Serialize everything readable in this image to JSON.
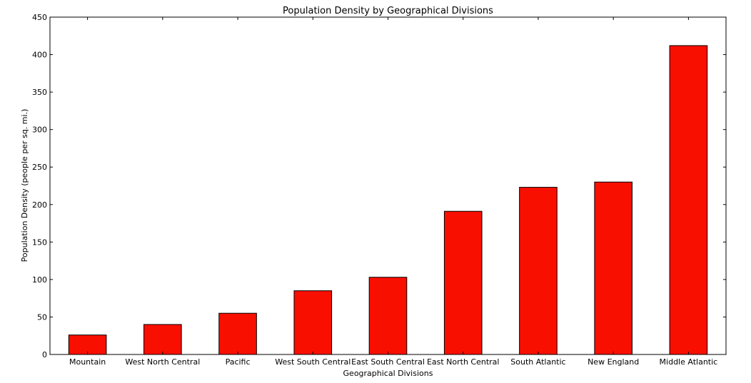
{
  "chart_data": {
    "type": "bar",
    "title": "Population Density by Geographical Divisions",
    "xlabel": "Geographical Divisions",
    "ylabel": "Population Density (people per sq. mi.)",
    "categories": [
      "Mountain",
      "West North Central",
      "Pacific",
      "West South Central",
      "East South Central",
      "East North Central",
      "South Atlantic",
      "New England",
      "Middle Atlantic"
    ],
    "values": [
      26,
      40,
      55,
      85,
      103,
      191,
      223,
      230,
      412
    ],
    "ylim": [
      0,
      450
    ],
    "yticks": [
      0,
      50,
      100,
      150,
      200,
      250,
      300,
      350,
      400,
      450
    ],
    "bar_color": "#f90f00",
    "edge_color": "#000000",
    "grid": false,
    "legend": "none"
  }
}
